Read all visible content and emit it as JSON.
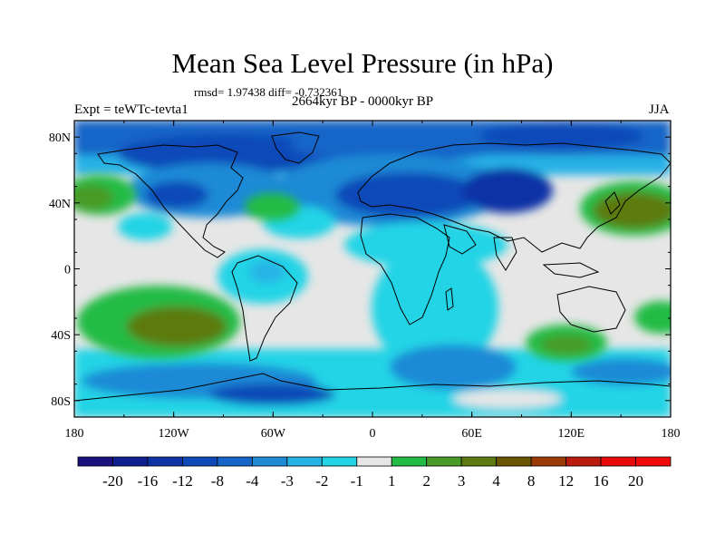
{
  "title": "Mean Sea Level Pressure (in hPa)",
  "stats": "rmsd= 1.97438 diff= -0.732361",
  "subtitle": "2664kyr BP - 0000kyr BP",
  "experiment": "Expt = teWTc-tevta1",
  "season": "JJA",
  "lat_ticks": [
    "80N",
    "40N",
    "0",
    "40S",
    "80S"
  ],
  "lon_ticks": [
    "180",
    "120W",
    "60W",
    "0",
    "60E",
    "120E",
    "180"
  ],
  "colorbar": {
    "labels": [
      "-20",
      "-16",
      "-12",
      "-8",
      "-4",
      "-3",
      "-2",
      "-1",
      "1",
      "2",
      "3",
      "4",
      "8",
      "12",
      "16",
      "20"
    ],
    "colors": [
      "#1a1080",
      "#0f1f8f",
      "#0d33a6",
      "#0d4ab8",
      "#1665c8",
      "#1f8ad6",
      "#27b2e6",
      "#23d4e6",
      "#e6e6e6",
      "#22bb44",
      "#4a9a28",
      "#5c7a10",
      "#6b5500",
      "#9c3a06",
      "#bb1a0e",
      "#e60a0a",
      "#f00a0a"
    ]
  }
}
